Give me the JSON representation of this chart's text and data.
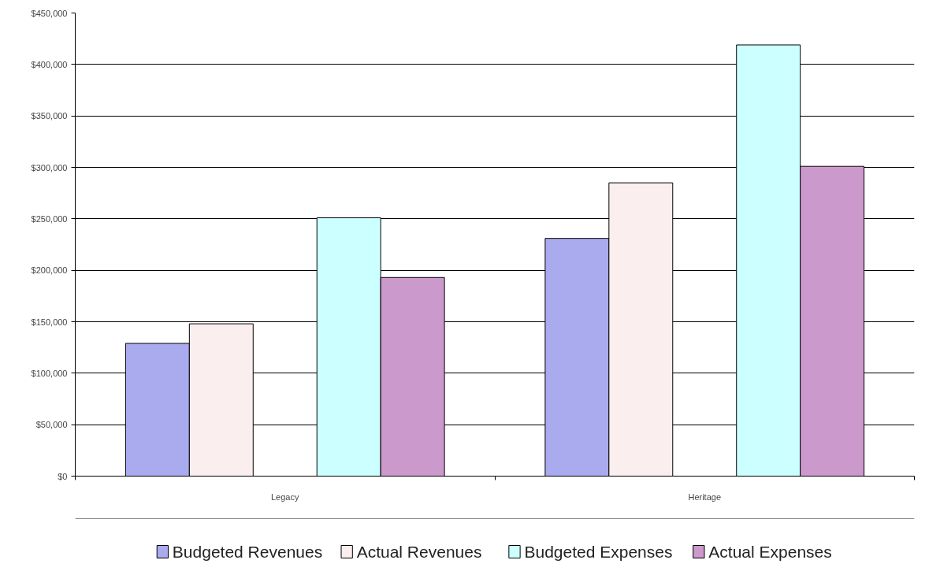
{
  "chart_data": {
    "type": "bar",
    "categories": [
      "Legacy",
      "Heritage"
    ],
    "series": [
      {
        "name": "Budgeted Revenues",
        "color": "#aaaaee",
        "values": [
          129000,
          231000
        ]
      },
      {
        "name": "Actual Revenues",
        "color": "#fbeeee",
        "values": [
          148000,
          285000
        ]
      },
      {
        "name": "Budgeted Expenses",
        "color": "#ccffff",
        "values": [
          251000,
          419000
        ]
      },
      {
        "name": "Actual Expenses",
        "color": "#cc99cc",
        "values": [
          193000,
          301000
        ]
      }
    ],
    "ylim": [
      0,
      450000
    ],
    "yticks": [
      {
        "value": 0,
        "label": "$0"
      },
      {
        "value": 50000,
        "label": "$50,000"
      },
      {
        "value": 100000,
        "label": "$100,000"
      },
      {
        "value": 150000,
        "label": "$150,000"
      },
      {
        "value": 200000,
        "label": "$200,000"
      },
      {
        "value": 250000,
        "label": "$250,000"
      },
      {
        "value": 300000,
        "label": "$300,000"
      },
      {
        "value": 350000,
        "label": "$350,000"
      },
      {
        "value": 400000,
        "label": "$400,000"
      },
      {
        "value": 450000,
        "label": "$450,000"
      }
    ],
    "grid": "y",
    "legend": "bottom"
  }
}
